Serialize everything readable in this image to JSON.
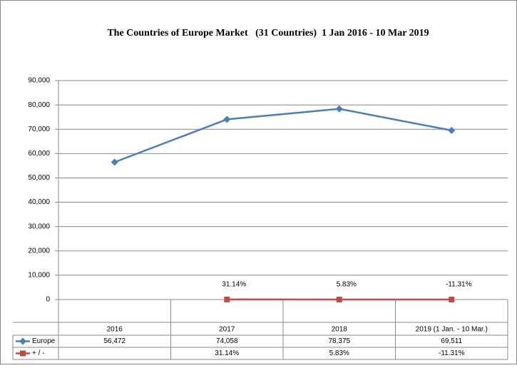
{
  "chart_data": {
    "type": "line",
    "title": "The Countries of Europe Market   (31 Countries)  1 Jan 2016 - 10 Mar 2019",
    "categories": [
      "2016",
      "2017",
      "2018",
      "2019 (1 Jan. - 10 Mar.)"
    ],
    "series": [
      {
        "name": "Europe",
        "color": "#4a7ebb",
        "marker": "diamond",
        "values": [
          56472,
          74058,
          78375,
          69511
        ],
        "value_labels": [
          "56,472",
          "74,058",
          "78,375",
          "69,511"
        ]
      },
      {
        "name": "+ / -",
        "color": "#be4b48",
        "marker": "square",
        "values": [
          null,
          31.14,
          5.83,
          -11.31
        ],
        "value_labels": [
          null,
          "31.14%",
          "5.83%",
          "-11.31%"
        ],
        "data_labels": true
      }
    ],
    "ylim": [
      0,
      90000
    ],
    "yticks": [
      0,
      {
        "value": 10000,
        "label": "10,000"
      },
      {
        "value": 20000,
        "label": "20,000"
      },
      {
        "value": 30000,
        "label": "30,000"
      },
      {
        "value": 40000,
        "label": "40,000"
      },
      {
        "value": 50000,
        "label": "50,000"
      },
      {
        "value": 60000,
        "label": "60,000"
      },
      {
        "value": 70000,
        "label": "70,000"
      },
      {
        "value": 80000,
        "label": "80,000"
      },
      {
        "value": 90000,
        "label": "90,000"
      }
    ],
    "grid": true,
    "data_table": true
  }
}
